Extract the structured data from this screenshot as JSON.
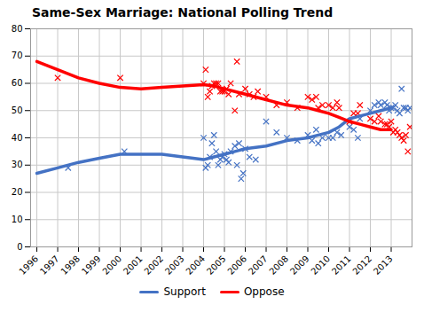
{
  "chart_data": {
    "type": "scatter",
    "title": "Same-Sex Marriage: National Polling Trend",
    "xlim": [
      1995.7,
      2014.0
    ],
    "xticks": [
      1996,
      1997,
      1998,
      1999,
      2000,
      2001,
      2002,
      2003,
      2004,
      2005,
      2006,
      2007,
      2008,
      2009,
      2010,
      2011,
      2012,
      2013
    ],
    "ylim": [
      0,
      80
    ],
    "yticks": [
      0,
      10,
      20,
      30,
      40,
      50,
      60,
      70,
      80
    ],
    "grid": true,
    "legend": "bottom",
    "series": [
      {
        "type": "scatter",
        "marker": "x",
        "color": "#4472C4",
        "x": [
          1997.5,
          2000.2,
          2004.0,
          2004.1,
          2004.2,
          2004.3,
          2004.4,
          2004.5,
          2004.6,
          2004.7,
          2004.8,
          2004.9,
          2005.0,
          2005.1,
          2005.2,
          2005.3,
          2005.5,
          2005.6,
          2005.7,
          2005.8,
          2005.9,
          2006.0,
          2006.2,
          2006.5,
          2007.0,
          2007.5,
          2008.0,
          2008.5,
          2009.0,
          2009.2,
          2009.4,
          2009.5,
          2009.7,
          2010.0,
          2010.2,
          2010.4,
          2010.6,
          2011.0,
          2011.2,
          2011.4,
          2011.5,
          2012.0,
          2012.2,
          2012.4,
          2012.5,
          2012.7,
          2012.8,
          2012.9,
          2013.0,
          2013.1,
          2013.2,
          2013.3,
          2013.4,
          2013.5,
          2013.6,
          2013.7,
          2013.8,
          2013.9
        ],
        "values": [
          29,
          35,
          40,
          29,
          30,
          33,
          38,
          41,
          35,
          30,
          32,
          33,
          34,
          32,
          31,
          35,
          37,
          30,
          38,
          25,
          27,
          36,
          33,
          32,
          46,
          42,
          40,
          39,
          41,
          39,
          43,
          38,
          40,
          40,
          40,
          42,
          41,
          44,
          43,
          40,
          47,
          50,
          52,
          53,
          52,
          53,
          52,
          50,
          51,
          51,
          52,
          50,
          49,
          58,
          51,
          51,
          50,
          51
        ]
      },
      {
        "type": "scatter",
        "marker": "x",
        "color": "#FF0000",
        "x": [
          1997.0,
          2000.0,
          2004.0,
          2004.1,
          2004.2,
          2004.3,
          2004.4,
          2004.5,
          2004.6,
          2004.7,
          2004.8,
          2004.9,
          2005.0,
          2005.1,
          2005.2,
          2005.3,
          2005.5,
          2005.6,
          2005.7,
          2006.0,
          2006.2,
          2006.4,
          2006.6,
          2007.0,
          2007.5,
          2008.0,
          2008.5,
          2009.0,
          2009.2,
          2009.4,
          2009.5,
          2009.7,
          2010.0,
          2010.2,
          2010.4,
          2010.5,
          2011.0,
          2011.2,
          2011.4,
          2011.5,
          2012.0,
          2012.2,
          2012.4,
          2012.5,
          2012.7,
          2012.8,
          2012.9,
          2013.0,
          2013.1,
          2013.2,
          2013.3,
          2013.4,
          2013.5,
          2013.6,
          2013.7,
          2013.8,
          2013.9
        ],
        "values": [
          62,
          62,
          60,
          65,
          55,
          57,
          59,
          60,
          60,
          60,
          57,
          57,
          57,
          58,
          56,
          60,
          50,
          68,
          56,
          58,
          56,
          55,
          57,
          55,
          52,
          53,
          51,
          55,
          54,
          55,
          51,
          52,
          52,
          51,
          53,
          51,
          46,
          49,
          49,
          52,
          47,
          46,
          48,
          46,
          45,
          45,
          44,
          46,
          42,
          43,
          42,
          41,
          40,
          39,
          41,
          35,
          44
        ]
      },
      {
        "name": "Support",
        "type": "line",
        "color": "#4472C4",
        "x": [
          1996,
          1997,
          1998,
          1999,
          2000,
          2001,
          2002,
          2003,
          2004,
          2004.5,
          2005,
          2005.5,
          2006,
          2007,
          2008,
          2009,
          2009.5,
          2010,
          2010.5,
          2011,
          2011.5,
          2012,
          2012.5,
          2013
        ],
        "values": [
          27,
          29,
          31,
          32.5,
          34,
          34,
          34,
          33,
          32,
          33,
          34,
          35,
          36,
          37,
          39,
          40,
          41,
          42,
          44,
          47,
          48,
          49,
          50,
          51
        ]
      },
      {
        "name": "Oppose",
        "type": "line",
        "color": "#FF0000",
        "x": [
          1996,
          1997,
          1998,
          1999,
          2000,
          2001,
          2002,
          2003,
          2004,
          2004.5,
          2005,
          2005.5,
          2006,
          2007,
          2008,
          2009,
          2009.5,
          2010,
          2010.5,
          2011,
          2011.5,
          2012,
          2012.5,
          2013
        ],
        "values": [
          68,
          65,
          62,
          60,
          58.5,
          58,
          58.5,
          59,
          59.5,
          59,
          58,
          57,
          56,
          54,
          52,
          51,
          50,
          49,
          47.5,
          46,
          45,
          44,
          43,
          43
        ]
      }
    ]
  }
}
